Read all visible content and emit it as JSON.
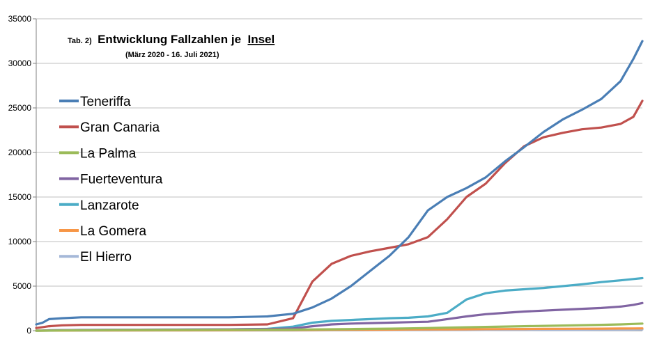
{
  "chart_data": {
    "type": "line",
    "title": {
      "prefix": "Tab. 2)",
      "main": "Entwicklung Fallzahlen je",
      "underlined": "Insel",
      "subtitle": "(März 2020 - 16. Juli 2021)"
    },
    "xlabel": "",
    "ylabel": "",
    "ylim": [
      0,
      35000
    ],
    "yticks": [
      "0",
      "5000",
      "10000",
      "15000",
      "20000",
      "25000",
      "30000",
      "35000"
    ],
    "grid": true,
    "legend_position": "left",
    "x": [
      0,
      5,
      10,
      20,
      35,
      60,
      100,
      150,
      180,
      200,
      215,
      230,
      245,
      260,
      275,
      290,
      305,
      320,
      335,
      350,
      365,
      380,
      395,
      410,
      425,
      440,
      455,
      465,
      472
    ],
    "series": [
      {
        "name": "Teneriffa",
        "color": "#4a7eb5",
        "values": [
          700,
          900,
          1300,
          1400,
          1500,
          1500,
          1500,
          1500,
          1600,
          1900,
          2600,
          3600,
          5000,
          6700,
          8400,
          10500,
          13500,
          15000,
          16000,
          17200,
          19000,
          20600,
          22300,
          23700,
          24800,
          26000,
          28000,
          30500,
          32500
        ]
      },
      {
        "name": "Gran Canaria",
        "color": "#c0504d",
        "values": [
          300,
          400,
          500,
          600,
          650,
          650,
          650,
          650,
          700,
          1400,
          5500,
          7500,
          8400,
          8900,
          9300,
          9700,
          10500,
          12500,
          15000,
          16500,
          18800,
          20700,
          21700,
          22200,
          22600,
          22800,
          23200,
          24000,
          25800
        ]
      },
      {
        "name": "La Palma",
        "color": "#9bbb59",
        "values": [
          0,
          0,
          10,
          20,
          40,
          60,
          80,
          100,
          110,
          120,
          140,
          160,
          180,
          200,
          230,
          260,
          300,
          340,
          380,
          420,
          460,
          500,
          540,
          580,
          620,
          660,
          700,
          760,
          800
        ]
      },
      {
        "name": "Fuerteventura",
        "color": "#8064a2",
        "values": [
          0,
          10,
          40,
          60,
          80,
          100,
          120,
          150,
          180,
          250,
          500,
          700,
          800,
          850,
          900,
          950,
          1000,
          1300,
          1600,
          1850,
          2000,
          2150,
          2250,
          2350,
          2450,
          2550,
          2700,
          2900,
          3100
        ]
      },
      {
        "name": "Lanzarote",
        "color": "#4bacc6",
        "values": [
          0,
          10,
          40,
          60,
          80,
          100,
          120,
          150,
          200,
          450,
          900,
          1100,
          1200,
          1300,
          1400,
          1450,
          1600,
          2000,
          3500,
          4200,
          4500,
          4650,
          4800,
          5000,
          5200,
          5450,
          5650,
          5800,
          5900
        ]
      },
      {
        "name": "La Gomera",
        "color": "#f79646",
        "values": [
          0,
          0,
          5,
          10,
          20,
          30,
          40,
          50,
          60,
          70,
          80,
          90,
          100,
          110,
          120,
          130,
          140,
          150,
          160,
          170,
          180,
          190,
          200,
          210,
          220,
          230,
          240,
          250,
          260
        ]
      },
      {
        "name": "El Hierro",
        "color": "#a5b8d8",
        "values": [
          0,
          0,
          2,
          5,
          10,
          15,
          20,
          25,
          30,
          35,
          40,
          45,
          50,
          55,
          60,
          65,
          70,
          75,
          80,
          85,
          90,
          95,
          100,
          105,
          110,
          115,
          120,
          125,
          130
        ]
      }
    ]
  }
}
